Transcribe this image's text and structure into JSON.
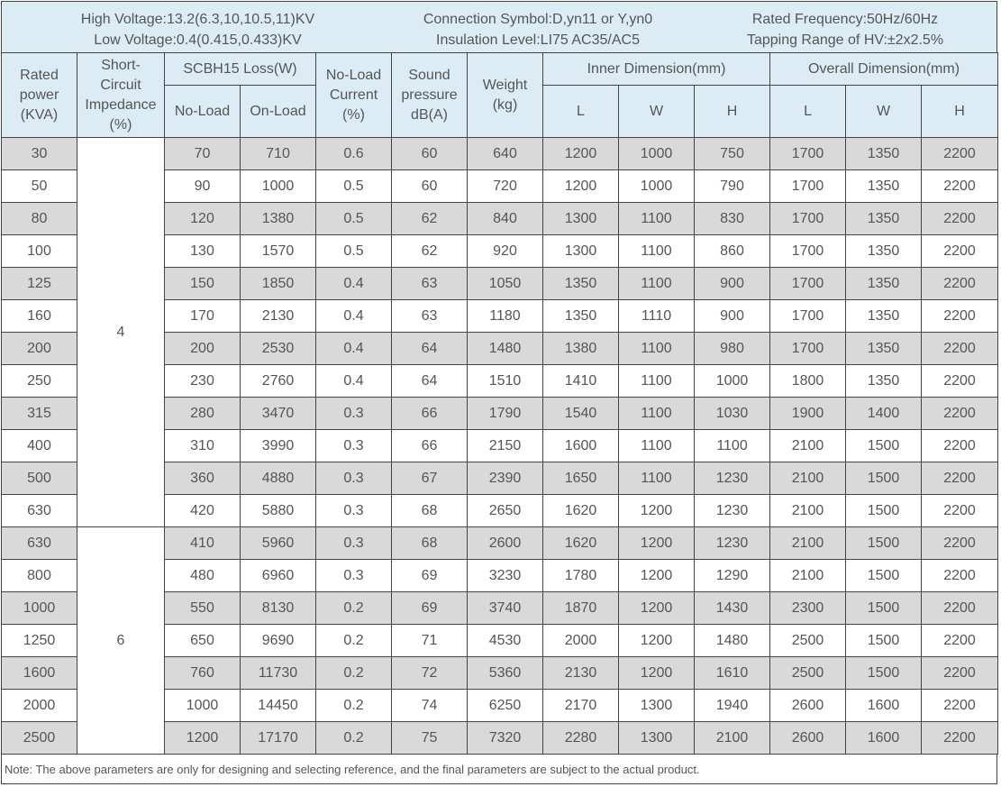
{
  "info": {
    "high_voltage": "High Voltage:13.2(6.3,10,10.5,11)KV",
    "low_voltage": "Low Voltage:0.4(0.415,0.433)KV",
    "connection_symbol": "Connection Symbol:D,yn11 or Y,yn0",
    "insulation_level": "Insulation Level:LI75 AC35/AC5",
    "rated_frequency": "Rated Frequency:50Hz/60Hz",
    "tapping_range": "Tapping Range of HV:±2x2.5%"
  },
  "headers": {
    "rated_power": [
      "Rated",
      "power",
      "(KVA)"
    ],
    "impedance": [
      "Short-",
      "Circuit",
      "Impedance",
      "(%)"
    ],
    "loss": "SCBH15 Loss(W)",
    "no_load": "No-Load",
    "on_load": "On-Load",
    "no_load_current": [
      "No-Load",
      "Current",
      "(%)"
    ],
    "sound": [
      "Sound",
      "pressure",
      "dB(A)"
    ],
    "weight": [
      "Weight",
      "(kg)"
    ],
    "inner": "Inner Dimension(mm)",
    "overall": "Overall Dimension(mm)",
    "L": "L",
    "W": "W",
    "H": "H"
  },
  "groups": [
    {
      "impedance": "4",
      "rows": [
        [
          "30",
          "70",
          "710",
          "0.6",
          "60",
          "640",
          "1200",
          "1000",
          "750",
          "1700",
          "1350",
          "2200"
        ],
        [
          "50",
          "90",
          "1000",
          "0.5",
          "60",
          "720",
          "1200",
          "1000",
          "790",
          "1700",
          "1350",
          "2200"
        ],
        [
          "80",
          "120",
          "1380",
          "0.5",
          "62",
          "840",
          "1300",
          "1100",
          "830",
          "1700",
          "1350",
          "2200"
        ],
        [
          "100",
          "130",
          "1570",
          "0.5",
          "62",
          "920",
          "1300",
          "1100",
          "860",
          "1700",
          "1350",
          "2200"
        ],
        [
          "125",
          "150",
          "1850",
          "0.4",
          "63",
          "1050",
          "1350",
          "1100",
          "900",
          "1700",
          "1350",
          "2200"
        ],
        [
          "160",
          "170",
          "2130",
          "0.4",
          "63",
          "1180",
          "1350",
          "1110",
          "900",
          "1700",
          "1350",
          "2200"
        ],
        [
          "200",
          "200",
          "2530",
          "0.4",
          "64",
          "1480",
          "1380",
          "1100",
          "980",
          "1700",
          "1350",
          "2200"
        ],
        [
          "250",
          "230",
          "2760",
          "0.4",
          "64",
          "1510",
          "1410",
          "1100",
          "1000",
          "1800",
          "1350",
          "2200"
        ],
        [
          "315",
          "280",
          "3470",
          "0.3",
          "66",
          "1790",
          "1540",
          "1100",
          "1030",
          "1900",
          "1400",
          "2200"
        ],
        [
          "400",
          "310",
          "3990",
          "0.3",
          "66",
          "2150",
          "1600",
          "1100",
          "1100",
          "2100",
          "1500",
          "2200"
        ],
        [
          "500",
          "360",
          "4880",
          "0.3",
          "67",
          "2390",
          "1650",
          "1100",
          "1230",
          "2100",
          "1500",
          "2200"
        ],
        [
          "630",
          "420",
          "5880",
          "0.3",
          "68",
          "2650",
          "1620",
          "1200",
          "1230",
          "2100",
          "1500",
          "2200"
        ]
      ]
    },
    {
      "impedance": "6",
      "rows": [
        [
          "630",
          "410",
          "5960",
          "0.3",
          "68",
          "2600",
          "1620",
          "1200",
          "1230",
          "2100",
          "1500",
          "2200"
        ],
        [
          "800",
          "480",
          "6960",
          "0.3",
          "69",
          "3230",
          "1780",
          "1200",
          "1290",
          "2100",
          "1500",
          "2200"
        ],
        [
          "1000",
          "550",
          "8130",
          "0.2",
          "69",
          "3740",
          "1870",
          "1200",
          "1430",
          "2300",
          "1500",
          "2200"
        ],
        [
          "1250",
          "650",
          "9690",
          "0.2",
          "71",
          "4530",
          "2000",
          "1200",
          "1480",
          "2500",
          "1500",
          "2200"
        ],
        [
          "1600",
          "760",
          "11730",
          "0.2",
          "72",
          "5360",
          "2130",
          "1200",
          "1610",
          "2500",
          "1500",
          "2200"
        ],
        [
          "2000",
          "1000",
          "14450",
          "0.2",
          "74",
          "6250",
          "2170",
          "1300",
          "1940",
          "2600",
          "1600",
          "2200"
        ],
        [
          "2500",
          "1200",
          "17170",
          "0.2",
          "75",
          "7320",
          "2280",
          "1300",
          "2100",
          "2600",
          "1600",
          "2200"
        ]
      ]
    }
  ],
  "note": "Note: The above parameters are only for designing and selecting  reference, and the final parameters are subject to the actual product."
}
